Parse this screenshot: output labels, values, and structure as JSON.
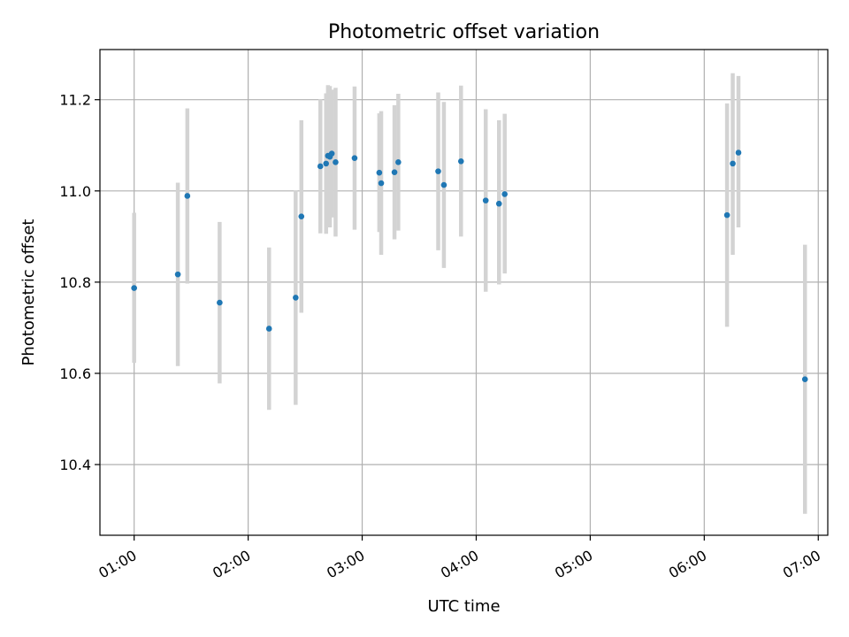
{
  "chart_data": {
    "type": "scatter",
    "title": "Photometric offset variation",
    "xlabel": "UTC time",
    "ylabel": "Photometric offset",
    "xlim": [
      "00:42",
      "07:05"
    ],
    "ylim": [
      10.245,
      11.31
    ],
    "grid": true,
    "x_ticks": [
      "01:00",
      "02:00",
      "03:00",
      "04:00",
      "05:00",
      "06:00",
      "07:00"
    ],
    "y_ticks": [
      10.4,
      10.6,
      10.8,
      11.0,
      11.2
    ],
    "colors": {
      "points": "#1f77b4",
      "error_bars": "#d3d3d3"
    },
    "series": [
      {
        "points": [
          {
            "t": "01:00",
            "y": 10.787,
            "lo": 10.623,
            "hi": 10.952
          },
          {
            "t": "01:23",
            "y": 10.817,
            "lo": 10.616,
            "hi": 11.018
          },
          {
            "t": "01:28",
            "y": 10.989,
            "lo": 10.797,
            "hi": 11.181
          },
          {
            "t": "01:45",
            "y": 10.755,
            "lo": 10.578,
            "hi": 10.932
          },
          {
            "t": "02:11",
            "y": 10.698,
            "lo": 10.52,
            "hi": 10.876
          },
          {
            "t": "02:25",
            "y": 10.766,
            "lo": 10.531,
            "hi": 11.001
          },
          {
            "t": "02:28",
            "y": 10.944,
            "lo": 10.733,
            "hi": 11.155
          },
          {
            "t": "02:38",
            "y": 11.054,
            "lo": 10.907,
            "hi": 11.201
          },
          {
            "t": "02:41",
            "y": 11.06,
            "lo": 10.906,
            "hi": 11.214
          },
          {
            "t": "02:42",
            "y": 11.077,
            "lo": 10.922,
            "hi": 11.232
          },
          {
            "t": "02:43",
            "y": 11.075,
            "lo": 10.92,
            "hi": 11.23
          },
          {
            "t": "02:44",
            "y": 11.082,
            "lo": 10.942,
            "hi": 11.222
          },
          {
            "t": "02:46",
            "y": 11.063,
            "lo": 10.9,
            "hi": 11.226
          },
          {
            "t": "02:56",
            "y": 11.072,
            "lo": 10.915,
            "hi": 11.229
          },
          {
            "t": "03:09",
            "y": 11.04,
            "lo": 10.91,
            "hi": 11.17
          },
          {
            "t": "03:10",
            "y": 11.017,
            "lo": 10.86,
            "hi": 11.175
          },
          {
            "t": "03:17",
            "y": 11.041,
            "lo": 10.894,
            "hi": 11.188
          },
          {
            "t": "03:19",
            "y": 11.063,
            "lo": 10.913,
            "hi": 11.213
          },
          {
            "t": "03:40",
            "y": 11.043,
            "lo": 10.87,
            "hi": 11.216
          },
          {
            "t": "03:43",
            "y": 11.013,
            "lo": 10.831,
            "hi": 11.195
          },
          {
            "t": "03:52",
            "y": 11.065,
            "lo": 10.9,
            "hi": 11.231
          },
          {
            "t": "04:05",
            "y": 10.979,
            "lo": 10.779,
            "hi": 11.179
          },
          {
            "t": "04:12",
            "y": 10.972,
            "lo": 10.795,
            "hi": 11.155
          },
          {
            "t": "04:15",
            "y": 10.993,
            "lo": 10.819,
            "hi": 11.169
          },
          {
            "t": "06:12",
            "y": 10.947,
            "lo": 10.702,
            "hi": 11.192
          },
          {
            "t": "06:15",
            "y": 11.06,
            "lo": 10.86,
            "hi": 11.258
          },
          {
            "t": "06:18",
            "y": 11.084,
            "lo": 10.92,
            "hi": 11.252
          },
          {
            "t": "06:53",
            "y": 10.587,
            "lo": 10.292,
            "hi": 10.882
          }
        ]
      }
    ]
  }
}
